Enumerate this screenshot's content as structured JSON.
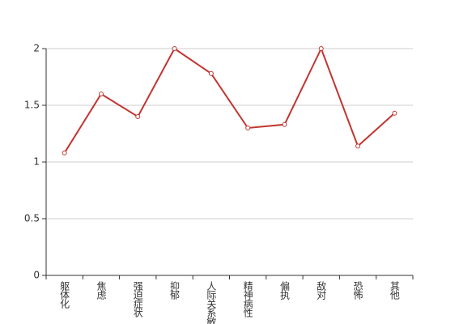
{
  "chart_data": {
    "type": "line",
    "categories": [
      "躯体化",
      "焦虑",
      "强迫症状",
      "抑郁",
      "人际关系敏感",
      "精神病性",
      "偏执",
      "敌对",
      "恐怖",
      "其他"
    ],
    "series": [
      {
        "color": "#c23531",
        "values": [
          1.08,
          1.6,
          1.4,
          2.0,
          1.78,
          1.3,
          1.33,
          2.0,
          1.14,
          1.43
        ]
      }
    ],
    "ylim": [
      0,
      2
    ],
    "yticks": [
      0,
      0.5,
      1,
      1.5,
      2
    ],
    "grid": true
  }
}
